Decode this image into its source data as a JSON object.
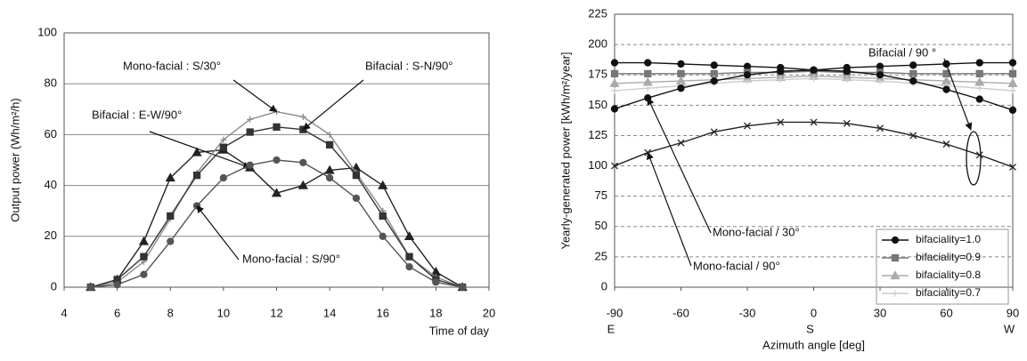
{
  "chart_data": [
    {
      "type": "line",
      "x_label": "Time of day",
      "y_label": "Output power (Wh/m²/h)",
      "x": [
        5,
        6,
        7,
        8,
        9,
        10,
        11,
        12,
        13,
        14,
        15,
        16,
        17,
        18,
        19
      ],
      "xlim": [
        4,
        20
      ],
      "xticks": [
        4,
        6,
        8,
        10,
        12,
        14,
        16,
        18,
        20
      ],
      "ylim": [
        0,
        100
      ],
      "yticks": [
        0,
        20,
        40,
        60,
        80,
        100
      ],
      "grid": true,
      "series": [
        {
          "name": "Bifacial : E-W/90°",
          "color": "#222222",
          "marker": "triangle",
          "values": [
            0,
            3,
            18,
            43,
            53,
            54,
            47,
            37,
            40,
            46,
            47,
            40,
            20,
            6,
            0
          ]
        },
        {
          "name": "Mono-facial : S/30°",
          "color": "#8a8a8a",
          "marker": "plus",
          "values": [
            0,
            2,
            10,
            27,
            45,
            58,
            66,
            69,
            67,
            60,
            45,
            30,
            12,
            4,
            0
          ]
        },
        {
          "name": "Bifacial : S-N/90°",
          "color": "#333333",
          "marker": "square",
          "values": [
            0,
            3,
            12,
            28,
            44,
            55,
            61,
            63,
            62,
            56,
            44,
            28,
            12,
            3,
            0
          ]
        },
        {
          "name": "Mono-facial : S/90°",
          "color": "#555555",
          "marker": "circle",
          "values": [
            0,
            1,
            5,
            18,
            32,
            43,
            48,
            50,
            49,
            43,
            35,
            20,
            8,
            2,
            0
          ]
        }
      ]
    },
    {
      "type": "line",
      "x_label": "Azimuth angle [deg]",
      "y_label": "Yearly-generated power [kWh/m²/year]",
      "x": [
        -90,
        -75,
        -60,
        -45,
        -30,
        -15,
        0,
        15,
        30,
        45,
        60,
        75,
        90
      ],
      "xlim": [
        -90,
        90
      ],
      "xticks": [
        -90,
        -60,
        -30,
        0,
        30,
        60,
        90
      ],
      "direction_labels": [
        {
          "value": -90,
          "label": "E"
        },
        {
          "value": 0,
          "label": "S"
        },
        {
          "value": 90,
          "label": "W"
        }
      ],
      "ylim": [
        0,
        225
      ],
      "yticks": [
        0,
        25,
        50,
        75,
        100,
        125,
        150,
        175,
        200,
        225
      ],
      "grid": true,
      "annotation": "Bifacial / 90 °",
      "series": [
        {
          "name": "bifaciality=1.0",
          "color": "#111111",
          "marker": "circle",
          "values": [
            185,
            185,
            184,
            183,
            182,
            181,
            179,
            181,
            182,
            183,
            184,
            185,
            185
          ]
        },
        {
          "name": "bifaciality=0.9",
          "color": "#777777",
          "marker": "square",
          "values": [
            176,
            176,
            176,
            176,
            177,
            177,
            178,
            177,
            177,
            176,
            176,
            176,
            176
          ]
        },
        {
          "name": "bifaciality=0.8",
          "color": "#aaaaaa",
          "marker": "triangle",
          "values": [
            168,
            169,
            170,
            171,
            172,
            173,
            174,
            173,
            172,
            171,
            170,
            169,
            168
          ]
        },
        {
          "name": "bifaciality=0.7",
          "color": "#cccccc",
          "marker": "plus",
          "values": [
            162,
            164,
            166,
            168,
            170,
            171,
            172,
            171,
            170,
            168,
            166,
            164,
            162
          ]
        },
        {
          "name": "Mono-facial / 30°",
          "in_legend": false,
          "color": "#111111",
          "marker": "circle",
          "values": [
            147,
            156,
            164,
            170,
            175,
            178,
            179,
            178,
            175,
            170,
            163,
            155,
            146
          ]
        },
        {
          "name": "Mono-facial / 90°",
          "in_legend": false,
          "color": "#222222",
          "marker": "cross",
          "values": [
            100,
            111,
            119,
            128,
            133,
            136,
            136,
            135,
            131,
            125,
            118,
            109,
            99
          ]
        }
      ]
    }
  ]
}
